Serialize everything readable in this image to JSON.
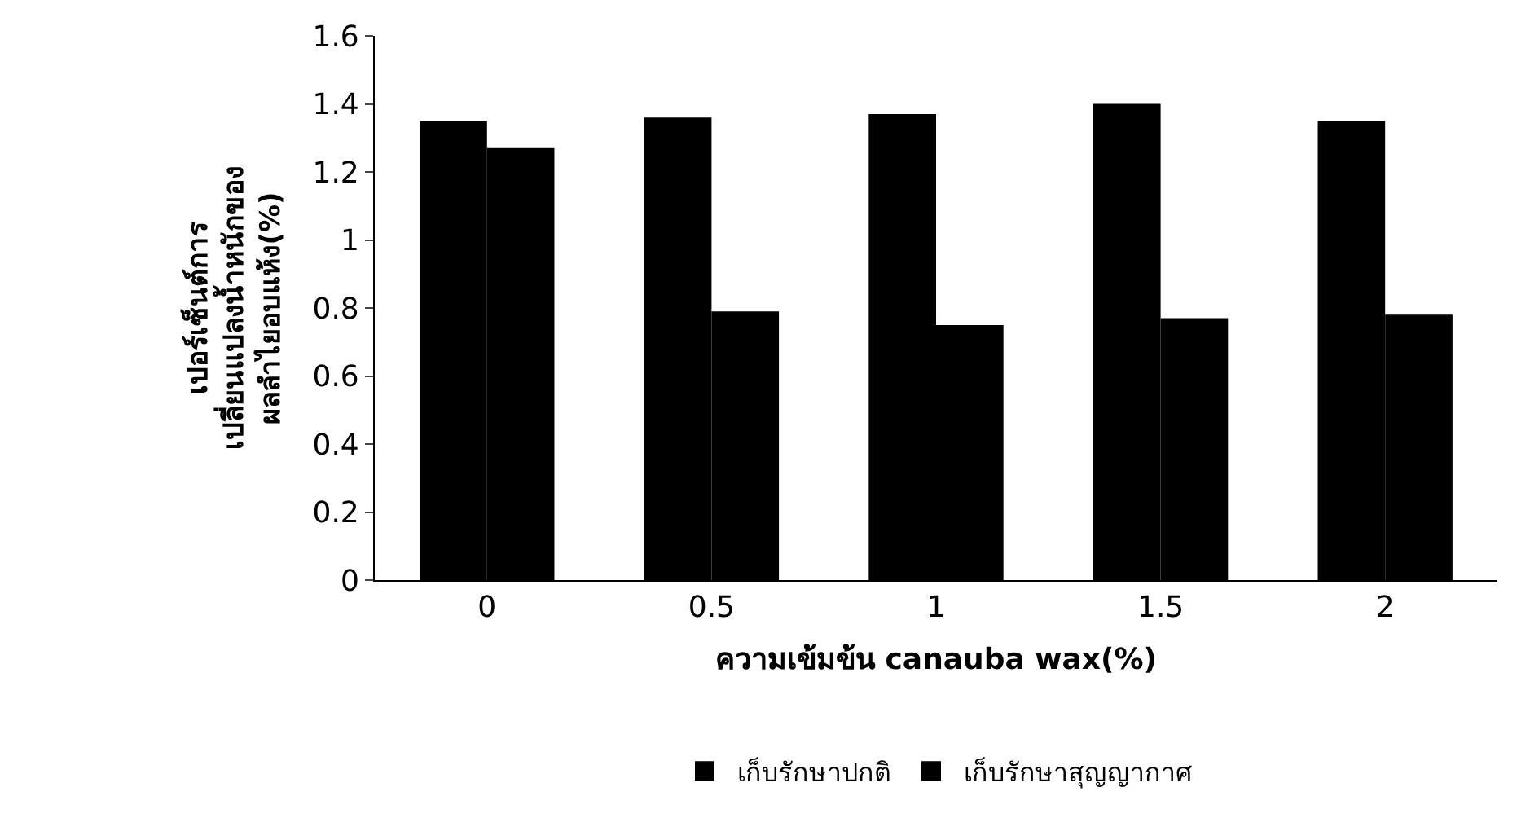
{
  "chart_data": {
    "type": "bar",
    "xlabel": "ความเข้มข้น canauba wax(%)",
    "ylabel": "เปอร์เซ็นต์การ\nเปลี่ยนแปลงน้ำหนักของ\nผลลำไยอบแห้ง(%)",
    "categories": [
      "0",
      "0.5",
      "1",
      "1.5",
      "2"
    ],
    "series": [
      {
        "name": "เก็บรักษาปกติ",
        "color": "#000000",
        "values": [
          1.35,
          1.36,
          1.37,
          1.4,
          1.35
        ]
      },
      {
        "name": "เก็บรักษาสุญญากาศ",
        "color": "#000000",
        "values": [
          1.27,
          0.79,
          0.75,
          0.77,
          0.78
        ]
      }
    ],
    "ylim": [
      0,
      1.6
    ],
    "yticks": [
      0,
      0.2,
      0.4,
      0.6,
      0.8,
      1,
      1.2,
      1.4,
      1.6
    ],
    "legend": "bottom"
  }
}
